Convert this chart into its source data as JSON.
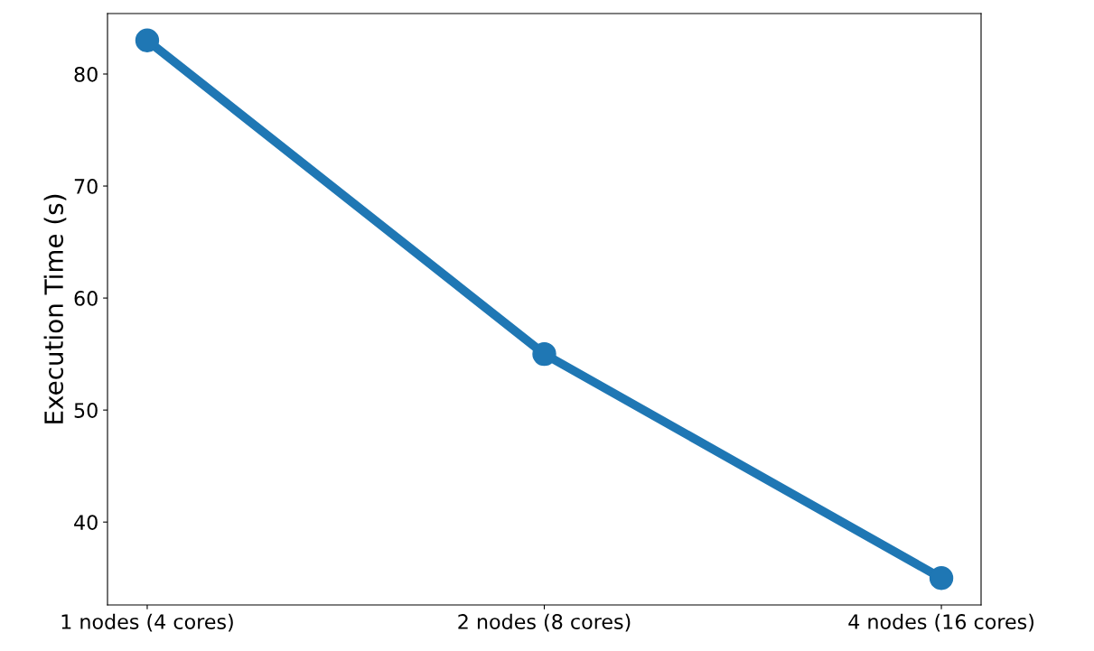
{
  "chart_data": {
    "type": "line",
    "ylabel": "Execution Time (s)",
    "categories": [
      "1 nodes (4 cores)",
      "2 nodes (8 cores)",
      "4 nodes (16 cores)"
    ],
    "series": [
      {
        "color": "#1f77b4",
        "values": [
          83,
          55,
          35
        ]
      }
    ],
    "ylim": [
      32.6,
      85.4
    ],
    "yticks": [
      40,
      50,
      60,
      70,
      80
    ],
    "marker": "circle",
    "line_style": "solid",
    "grid": false,
    "legend": false
  }
}
